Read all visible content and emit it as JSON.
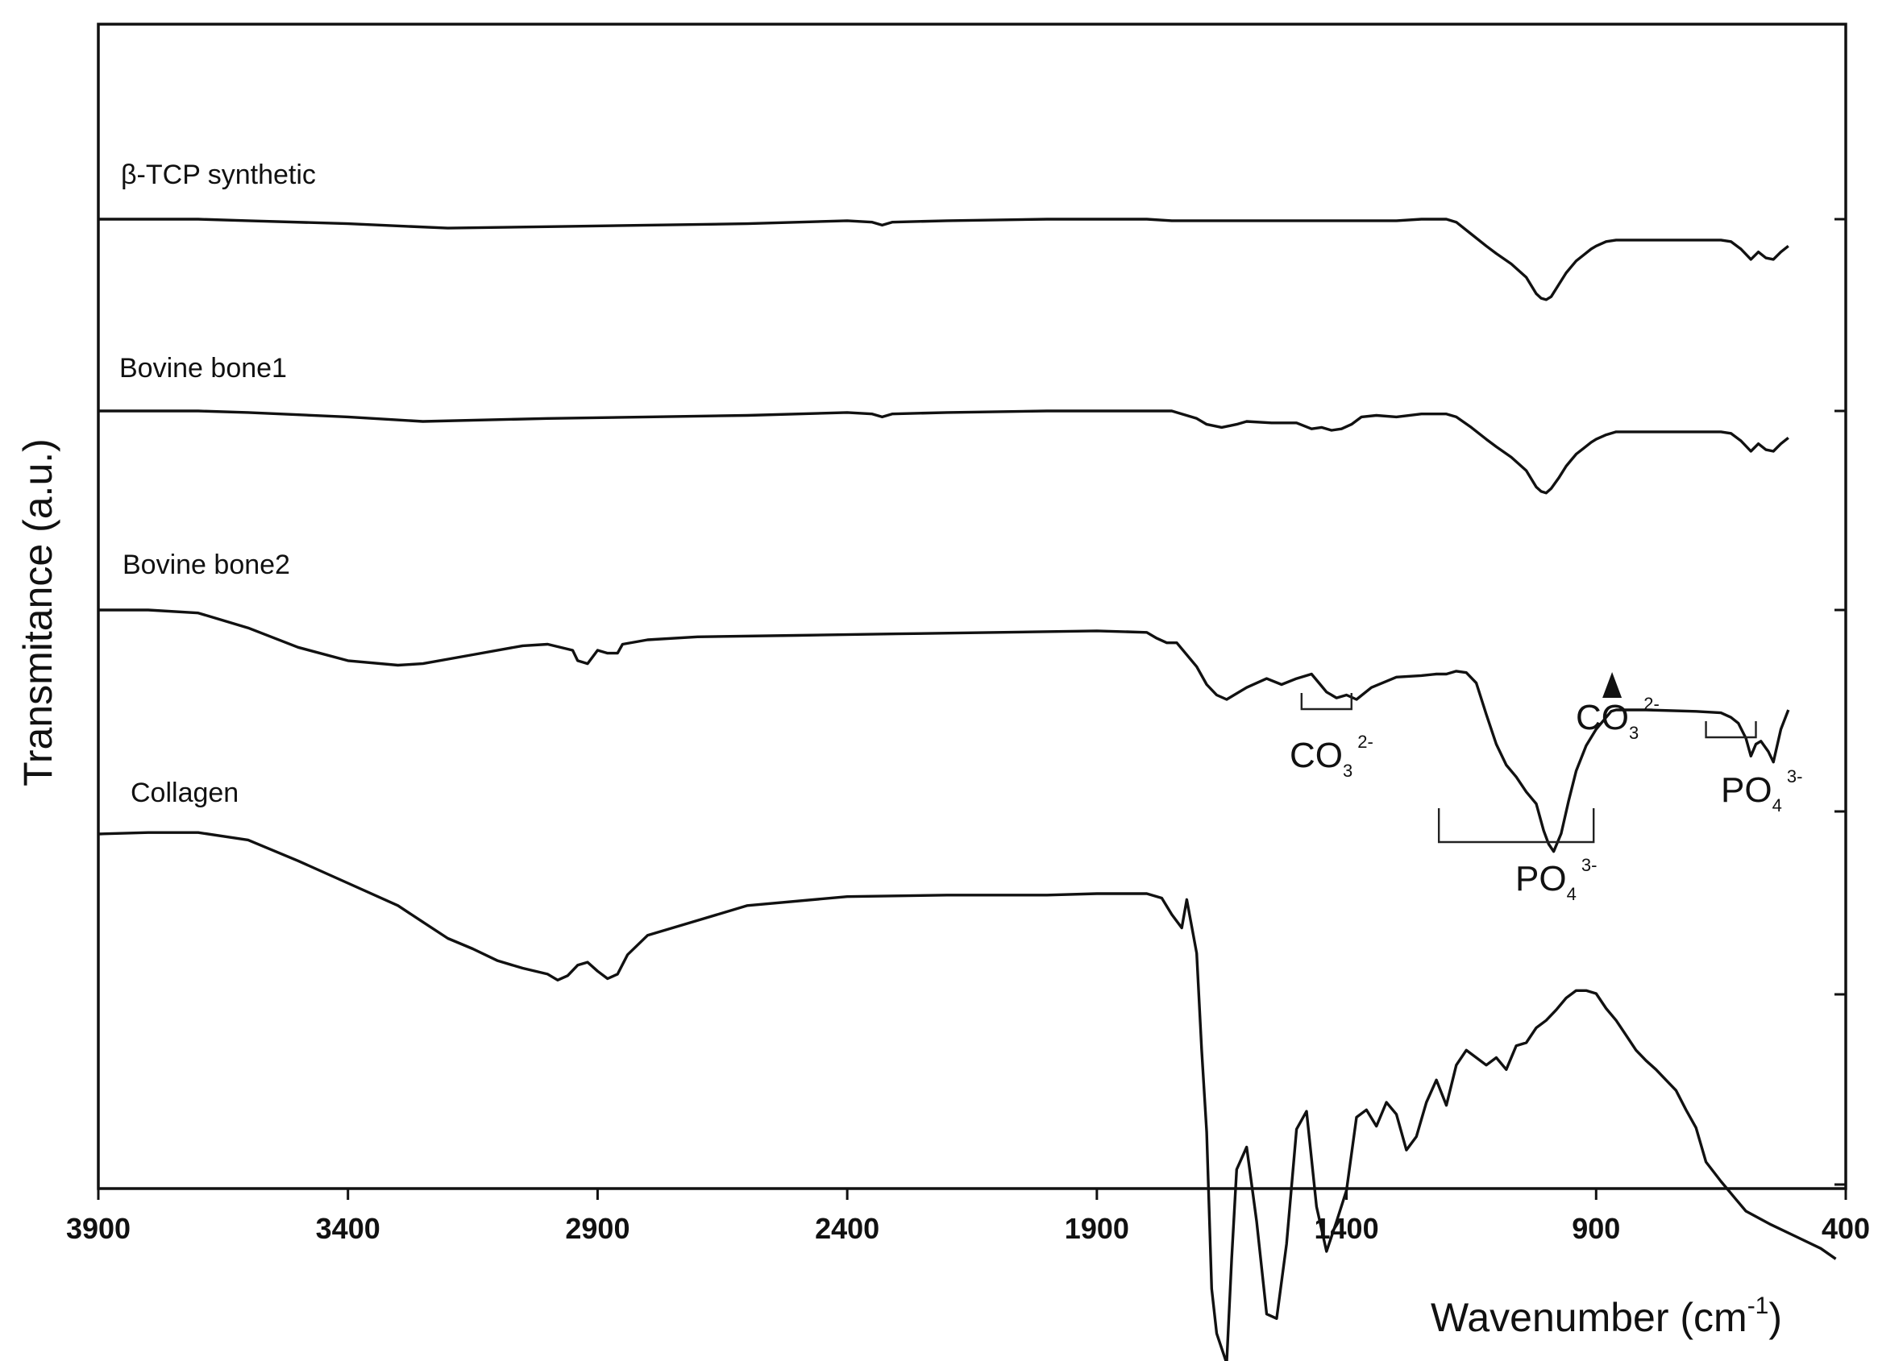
{
  "chart_data": {
    "type": "line",
    "title": "",
    "xlabel": "Wavenumber (cm",
    "xlabel_sup": "-1",
    "xlabel_close": ")",
    "ylabel": "Transmitance (a.u.)",
    "xlim": [
      3900,
      400
    ],
    "x_reversed": true,
    "y_units": "arbitrary (stacked offsets)",
    "xticks": [
      "3900",
      "3400",
      "2900",
      "2400",
      "1900",
      "1400",
      "900",
      "400"
    ],
    "grid": false,
    "legend": "none (series labelled directly above each trace)",
    "series": [
      {
        "name": "β-TCP synthetic",
        "x": [
          3900,
          3800,
          3700,
          3600,
          3400,
          3200,
          3000,
          2800,
          2600,
          2400,
          2350,
          2330,
          2310,
          2200,
          2000,
          1800,
          1750,
          1700,
          1500,
          1300,
          1250,
          1200,
          1180,
          1150,
          1120,
          1100,
          1070,
          1040,
          1020,
          1010,
          1000,
          990,
          975,
          960,
          950,
          940,
          925,
          910,
          900,
          880,
          860,
          800,
          700,
          650,
          630,
          610,
          590,
          575,
          560,
          545,
          530,
          515
        ],
        "y": [
          100,
          100,
          100,
          99,
          97,
          94,
          95,
          96,
          97,
          99,
          98,
          96,
          98,
          99,
          100,
          100,
          99,
          99,
          99,
          99,
          100,
          100,
          98,
          90,
          82,
          77,
          70,
          61,
          50,
          47,
          46,
          48,
          56,
          64,
          68,
          72,
          76,
          80,
          82,
          85,
          86,
          86,
          86,
          86,
          85,
          80,
          73,
          78,
          74,
          73,
          78,
          82
        ]
      },
      {
        "name": "Bovine bone1",
        "x": [
          3900,
          3800,
          3700,
          3600,
          3400,
          3250,
          3000,
          2800,
          2600,
          2400,
          2350,
          2330,
          2310,
          2200,
          2000,
          1800,
          1750,
          1700,
          1680,
          1650,
          1620,
          1600,
          1550,
          1500,
          1470,
          1450,
          1430,
          1410,
          1390,
          1370,
          1340,
          1300,
          1250,
          1200,
          1180,
          1150,
          1120,
          1100,
          1070,
          1040,
          1020,
          1010,
          1000,
          990,
          975,
          960,
          950,
          940,
          925,
          910,
          900,
          880,
          860,
          800,
          700,
          650,
          630,
          610,
          590,
          575,
          560,
          545,
          530,
          515
        ],
        "y": [
          100,
          100,
          100,
          99,
          96,
          93,
          95,
          96,
          97,
          99,
          98,
          96,
          98,
          99,
          100,
          100,
          100,
          95,
          91,
          89,
          91,
          93,
          92,
          92,
          88,
          89,
          87,
          88,
          91,
          96,
          97,
          96,
          98,
          98,
          96,
          89,
          81,
          76,
          69,
          60,
          49,
          46,
          45,
          48,
          55,
          63,
          67,
          71,
          75,
          79,
          81,
          84,
          86,
          86,
          86,
          86,
          85,
          80,
          73,
          78,
          74,
          73,
          78,
          82
        ]
      },
      {
        "name": "Bovine bone2",
        "x": [
          3900,
          3800,
          3700,
          3600,
          3500,
          3400,
          3300,
          3250,
          3150,
          3050,
          3000,
          2950,
          2940,
          2920,
          2900,
          2880,
          2860,
          2850,
          2800,
          2700,
          2500,
          2300,
          2100,
          1900,
          1800,
          1780,
          1760,
          1740,
          1700,
          1680,
          1660,
          1640,
          1600,
          1560,
          1530,
          1500,
          1470,
          1455,
          1440,
          1420,
          1400,
          1380,
          1350,
          1300,
          1250,
          1220,
          1200,
          1180,
          1160,
          1140,
          1120,
          1100,
          1080,
          1060,
          1040,
          1020,
          1005,
          995,
          985,
          970,
          955,
          940,
          920,
          900,
          880,
          870,
          860,
          800,
          700,
          650,
          630,
          615,
          600,
          590,
          580,
          570,
          555,
          545,
          530,
          515
        ],
        "y": [
          100,
          100,
          98,
          88,
          75,
          66,
          63,
          64,
          70,
          76,
          77,
          73,
          66,
          64,
          73,
          71,
          71,
          77,
          80,
          82,
          83,
          84,
          85,
          86,
          85,
          81,
          78,
          78,
          62,
          50,
          43,
          40,
          48,
          54,
          50,
          54,
          57,
          51,
          45,
          41,
          43,
          40,
          48,
          55,
          56,
          57,
          57,
          59,
          58,
          51,
          30,
          10,
          -4,
          -12,
          -22,
          -30,
          -48,
          -57,
          -62,
          -50,
          -28,
          -8,
          9,
          20,
          28,
          32,
          33,
          33,
          32,
          31,
          28,
          24,
          14,
          2,
          10,
          12,
          5,
          -2,
          20,
          33
        ]
      },
      {
        "name": "Collagen",
        "x": [
          3900,
          3800,
          3700,
          3600,
          3500,
          3400,
          3300,
          3250,
          3200,
          3150,
          3100,
          3050,
          3000,
          2980,
          2960,
          2940,
          2920,
          2900,
          2880,
          2860,
          2840,
          2800,
          2600,
          2400,
          2200,
          2000,
          1900,
          1800,
          1770,
          1750,
          1730,
          1720,
          1700,
          1690,
          1680,
          1670,
          1660,
          1650,
          1640,
          1630,
          1620,
          1600,
          1580,
          1560,
          1540,
          1520,
          1500,
          1480,
          1460,
          1440,
          1420,
          1400,
          1380,
          1360,
          1340,
          1320,
          1300,
          1280,
          1260,
          1240,
          1220,
          1200,
          1180,
          1160,
          1140,
          1120,
          1100,
          1080,
          1060,
          1040,
          1020,
          1000,
          980,
          960,
          940,
          920,
          900,
          880,
          860,
          840,
          820,
          800,
          780,
          760,
          740,
          720,
          700,
          680,
          650,
          620,
          600,
          550,
          500,
          450,
          420
        ],
        "y": [
          100,
          101,
          101,
          96,
          82,
          67,
          52,
          41,
          30,
          23,
          15,
          10,
          6,
          2,
          5,
          12,
          14,
          8,
          3,
          6,
          19,
          32,
          52,
          58,
          59,
          59,
          60,
          60,
          57,
          46,
          37,
          56,
          20,
          -45,
          -100,
          -205,
          -235,
          -245,
          -255,
          -185,
          -125,
          -110,
          -160,
          -222,
          -225,
          -175,
          -98,
          -86,
          -150,
          -180,
          -160,
          -139,
          -90,
          -85,
          -96,
          -80,
          -88,
          -112,
          -103,
          -80,
          -65,
          -82,
          -55,
          -45,
          -50,
          -55,
          -50,
          -58,
          -42,
          -40,
          -30,
          -25,
          -18,
          -10,
          -5,
          -5,
          -7,
          -17,
          -25,
          -35,
          -45,
          -52,
          -58,
          -65,
          -72,
          -85,
          -97,
          -120,
          -133,
          -145,
          -153,
          -162,
          -170,
          -178,
          -185
        ]
      }
    ]
  },
  "labels": {
    "series": [
      "β-TCP synthetic",
      "Bovine bone1",
      "Bovine bone2",
      "Collagen"
    ],
    "bands": [
      {
        "main": "CO",
        "sub": "3",
        "sup": "2-"
      },
      {
        "main": "CO",
        "sub": "3",
        "sup": "2-"
      },
      {
        "main": "PO",
        "sub": "4",
        "sup": "3-"
      },
      {
        "main": "PO",
        "sub": "4",
        "sup": "3-"
      }
    ]
  }
}
